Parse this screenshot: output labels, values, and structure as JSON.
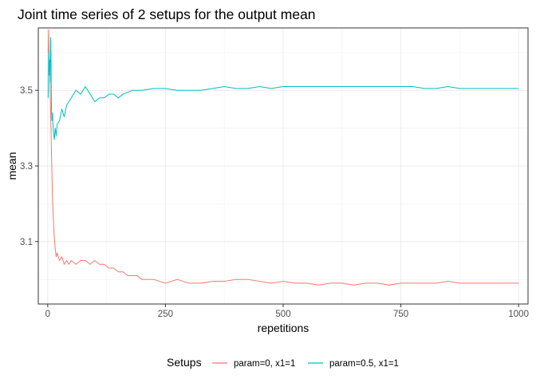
{
  "chart_data": {
    "type": "line",
    "title": "Joint time series of 2 setups for the output mean",
    "xlabel": "repetitions",
    "ylabel": "mean",
    "xlim": [
      -20,
      1020
    ],
    "ylim": [
      2.935,
      3.665
    ],
    "x_ticks": [
      0,
      250,
      500,
      750,
      1000
    ],
    "x_tick_labels": [
      "0",
      "250",
      "500",
      "750",
      "1000"
    ],
    "y_ticks": [
      3.1,
      3.3,
      3.5
    ],
    "y_tick_labels": [
      "3.1",
      "3.3",
      "3.5"
    ],
    "grid": true,
    "legend": {
      "title": "Setups",
      "position": "bottom"
    },
    "series": [
      {
        "name": "param=0, x1=1",
        "color": "#F8766D",
        "x": [
          1,
          2,
          3,
          4,
          5,
          6,
          7,
          8,
          9,
          10,
          12,
          14,
          16,
          18,
          20,
          25,
          30,
          35,
          40,
          45,
          50,
          60,
          70,
          80,
          90,
          100,
          110,
          120,
          130,
          140,
          150,
          160,
          170,
          180,
          190,
          200,
          225,
          250,
          275,
          300,
          325,
          350,
          375,
          400,
          425,
          450,
          475,
          500,
          525,
          550,
          575,
          600,
          625,
          650,
          675,
          700,
          725,
          750,
          775,
          800,
          825,
          850,
          875,
          900,
          925,
          950,
          975,
          1000
        ],
        "y": [
          3.6,
          3.66,
          3.54,
          3.58,
          3.5,
          3.45,
          3.4,
          3.33,
          3.28,
          3.22,
          3.16,
          3.11,
          3.08,
          3.06,
          3.07,
          3.05,
          3.06,
          3.04,
          3.05,
          3.04,
          3.05,
          3.04,
          3.05,
          3.05,
          3.04,
          3.05,
          3.04,
          3.04,
          3.03,
          3.03,
          3.02,
          3.02,
          3.01,
          3.01,
          3.01,
          3.0,
          3.0,
          2.99,
          3.0,
          2.99,
          2.99,
          2.995,
          2.995,
          3.0,
          3.0,
          2.995,
          2.99,
          2.995,
          2.99,
          2.99,
          2.985,
          2.99,
          2.99,
          2.985,
          2.99,
          2.99,
          2.985,
          2.99,
          2.99,
          2.99,
          2.99,
          2.995,
          2.99,
          2.99,
          2.99,
          2.99,
          2.99,
          2.99
        ]
      },
      {
        "name": "param=0.5, x1=1",
        "color": "#00BFC4",
        "x": [
          1,
          2,
          3,
          4,
          5,
          6,
          7,
          8,
          9,
          10,
          12,
          14,
          16,
          18,
          20,
          25,
          30,
          35,
          40,
          45,
          50,
          60,
          70,
          80,
          90,
          100,
          110,
          120,
          130,
          140,
          150,
          160,
          170,
          180,
          190,
          200,
          225,
          250,
          275,
          300,
          325,
          350,
          375,
          400,
          425,
          450,
          475,
          500,
          525,
          550,
          575,
          600,
          625,
          650,
          675,
          700,
          725,
          750,
          775,
          800,
          825,
          850,
          875,
          900,
          925,
          950,
          975,
          1000
        ],
        "y": [
          3.48,
          3.6,
          3.55,
          3.58,
          3.52,
          3.64,
          3.6,
          3.45,
          3.42,
          3.44,
          3.39,
          3.37,
          3.4,
          3.38,
          3.41,
          3.42,
          3.45,
          3.43,
          3.46,
          3.47,
          3.48,
          3.5,
          3.49,
          3.51,
          3.49,
          3.47,
          3.48,
          3.48,
          3.49,
          3.49,
          3.48,
          3.49,
          3.495,
          3.5,
          3.5,
          3.5,
          3.505,
          3.505,
          3.5,
          3.5,
          3.5,
          3.505,
          3.51,
          3.505,
          3.505,
          3.51,
          3.505,
          3.51,
          3.51,
          3.51,
          3.51,
          3.51,
          3.51,
          3.51,
          3.51,
          3.51,
          3.51,
          3.51,
          3.51,
          3.505,
          3.505,
          3.51,
          3.505,
          3.505,
          3.505,
          3.505,
          3.505,
          3.505
        ]
      }
    ]
  }
}
